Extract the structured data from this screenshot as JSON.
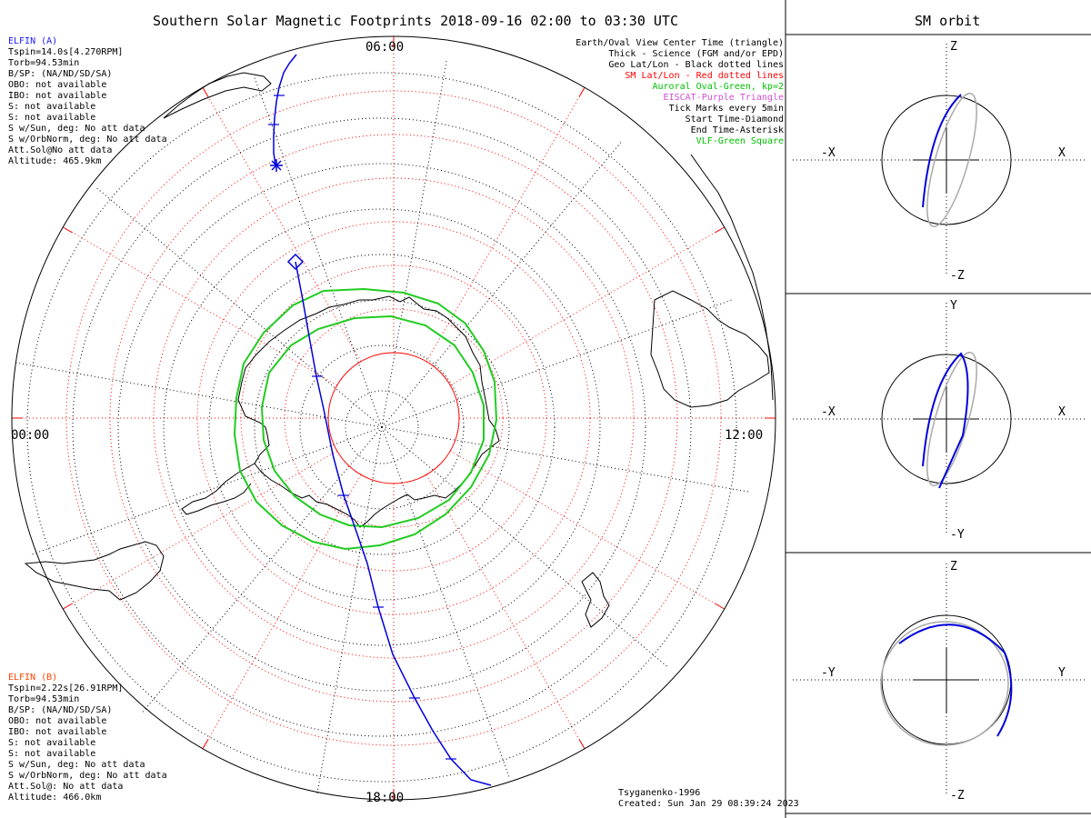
{
  "title": "Southern Solar Magnetic Footprints 2018-09-16 02:00 to 03:30 UTC",
  "orbit_title": "SM orbit",
  "clock_labels": {
    "top": "06:00",
    "left": "00:00",
    "right": "12:00",
    "bottom": "18:00"
  },
  "elfin_a": {
    "name": "ELFIN (A)",
    "color": "#1a1aff",
    "lines": [
      "Tspin=14.0s[4.270RPM]",
      "Torb=94.53min",
      "B/SP: (NA/ND/SD/SA)",
      "OBO: not available",
      "IBO: not available",
      "S: not available",
      "S: not available",
      "S w/Sun, deg: No att data",
      "S w/OrbNorm, deg: No att data",
      "Att.Sol@No att data",
      "Altitude: 465.9km"
    ]
  },
  "elfin_b": {
    "name": "ELFIN (B)",
    "color": "#ff4500",
    "lines": [
      "Tspin=2.22s[26.91RPM]",
      "Torb=94.53min",
      "B/SP: (NA/ND/SD/SA)",
      "OBO: not available",
      "IBO: not available",
      "S: not available",
      "S: not available",
      "S w/Sun, deg: No att data",
      "S w/OrbNorm, deg: No att data",
      "Att.Sol@: No att data",
      "Altitude: 466.0km"
    ]
  },
  "legend": [
    {
      "text": "Earth/Oval View Center Time (triangle)",
      "color": "#000000"
    },
    {
      "text": "Thick - Science (FGM and/or EPD)",
      "color": "#000000"
    },
    {
      "text": "Geo Lat/Lon - Black dotted lines",
      "color": "#000000"
    },
    {
      "text": "SM Lat/Lon - Red dotted lines",
      "color": "#ff0000"
    },
    {
      "text": "Auroral Oval-Green, kp=2",
      "color": "#00c000"
    },
    {
      "text": "EISCAT-Purple Triangle",
      "color": "#d050d0"
    },
    {
      "text": "Tick Marks every 5min",
      "color": "#000000"
    },
    {
      "text": "Start Time-Diamond",
      "color": "#000000"
    },
    {
      "text": "End Time-Asterisk",
      "color": "#000000"
    },
    {
      "text": "VLF-Green Square",
      "color": "#00c000"
    }
  ],
  "model": "Tsyganenko-1996",
  "created": "Created: Sun Jan 29 08:39:24 2023",
  "orbit_panels": [
    {
      "top": "Z",
      "bottom": "-Z",
      "left": "-X",
      "right": "X"
    },
    {
      "top": "Y",
      "bottom": "-Y",
      "left": "-X",
      "right": "X"
    },
    {
      "top": "Z",
      "bottom": "-Z",
      "left": "-Y",
      "right": "Y"
    }
  ],
  "colors": {
    "trace": "#0000dd",
    "oval": "#22cc22",
    "sm_grid": "#ff0000",
    "geo_grid": "#000000",
    "orbit_b": "#aaaaaa"
  }
}
